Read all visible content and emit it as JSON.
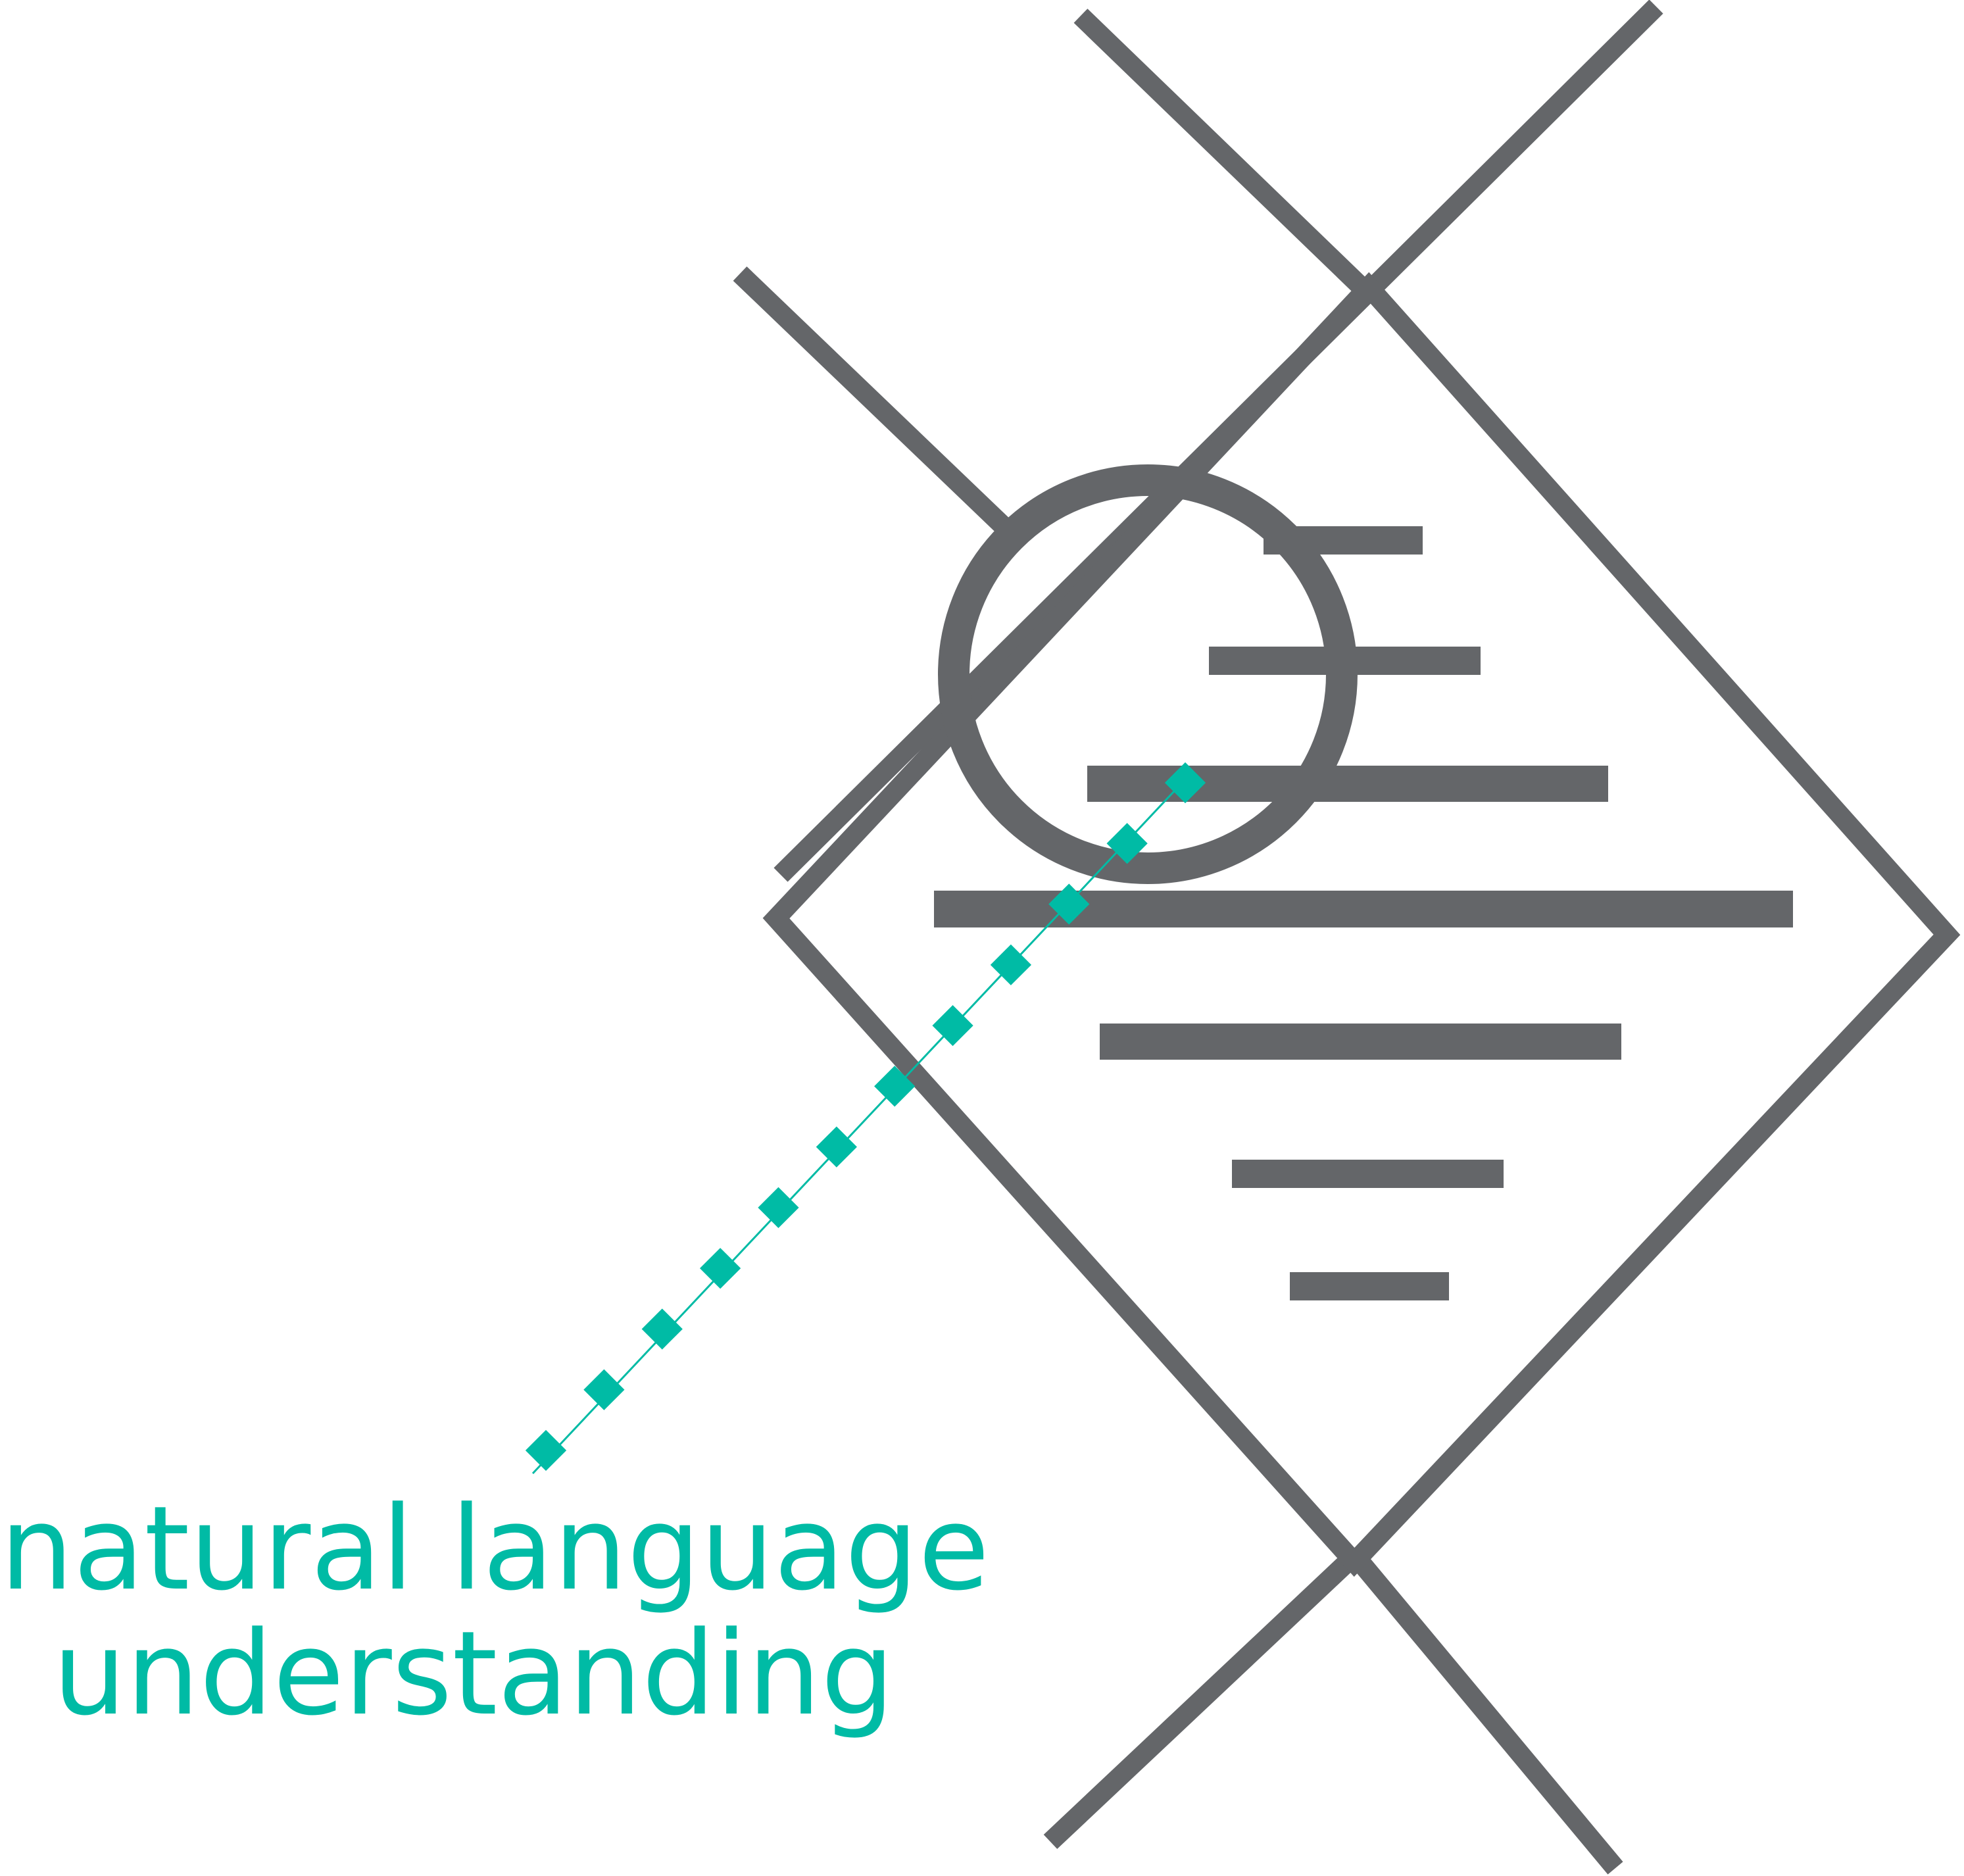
{
  "caption": {
    "line1": "natural language",
    "line2": "understanding"
  },
  "icons": {
    "diamond": "diamond-outline-icon",
    "magnifier": "magnifier-circle-icon",
    "text_lines": "document-text-lines-icon",
    "accent_dots": "dotted-diagonal-pointer-icon"
  },
  "colors": {
    "stroke": "#646669",
    "accent": "#00bba5",
    "background": "#ffffff"
  }
}
